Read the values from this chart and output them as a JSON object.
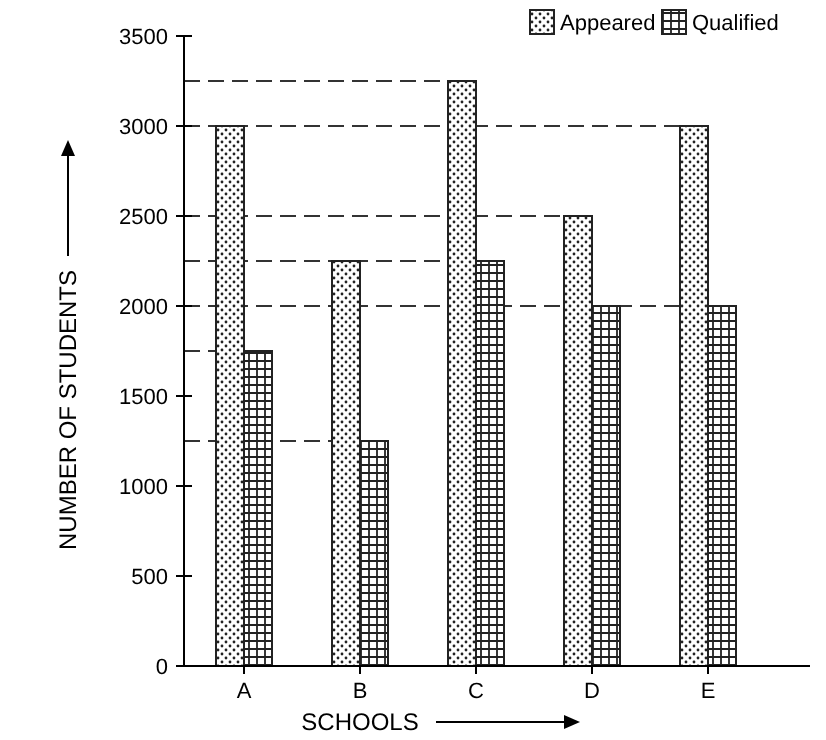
{
  "chart_data": {
    "type": "bar",
    "xlabel": "SCHOOLS",
    "ylabel": "NUMBER OF STUDENTS",
    "categories": [
      "A",
      "B",
      "C",
      "D",
      "E"
    ],
    "series": [
      {
        "name": "Appeared",
        "color": "#222222",
        "values": [
          3000,
          2250,
          3250,
          2500,
          3000
        ]
      },
      {
        "name": "Qualified",
        "color": "#222222",
        "values": [
          1750,
          1250,
          2250,
          2000,
          2000
        ]
      }
    ],
    "ylim": [
      0,
      3500
    ],
    "yticks": [
      0,
      500,
      1000,
      1500,
      2000,
      2500,
      3000,
      3500
    ],
    "grid": false,
    "legend": "top right",
    "ref_lines": [
      {
        "axis": "y",
        "value": 3250,
        "line_style": "dashed"
      },
      {
        "axis": "y",
        "value": 3000,
        "line_style": "dashed"
      },
      {
        "axis": "y",
        "value": 2500,
        "line_style": "dashed"
      },
      {
        "axis": "y",
        "value": 2250,
        "line_style": "dashed"
      },
      {
        "axis": "y",
        "value": 2000,
        "line_style": "dashed"
      },
      {
        "axis": "y",
        "value": 1750,
        "line_style": "dashed"
      },
      {
        "axis": "y",
        "value": 1250,
        "line_style": "dashed"
      }
    ]
  }
}
